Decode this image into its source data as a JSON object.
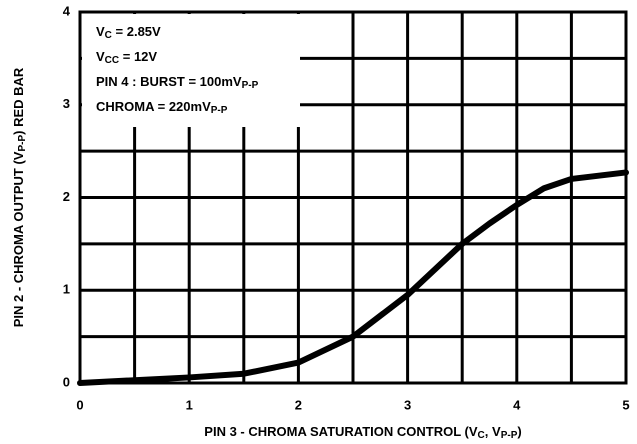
{
  "chart_data": {
    "type": "line",
    "x_label": [
      {
        "text": "PIN 3 - CHROMA SATURATION CONTROL (V"
      },
      {
        "text": "C",
        "sub": true
      },
      {
        "text": ", V"
      },
      {
        "text": "P-P",
        "sub": true
      },
      {
        "text": ")"
      }
    ],
    "y_label": [
      {
        "text": "PIN 2 - CHROMA OUTPUT (V"
      },
      {
        "text": "P-P",
        "sub": true
      },
      {
        "text": ") RED BAR"
      }
    ],
    "annotations": [
      [
        {
          "text": "V"
        },
        {
          "text": "C",
          "sub": true
        },
        {
          "text": " = 2.85V"
        }
      ],
      [
        {
          "text": "V"
        },
        {
          "text": "CC",
          "sub": true
        },
        {
          "text": " = 12V"
        }
      ],
      [
        {
          "text": "PIN 4 : BURST = 100mV"
        },
        {
          "text": "P-P",
          "sub": true
        }
      ],
      [
        {
          "text": "CHROMA = 220mV"
        },
        {
          "text": "P-P",
          "sub": true
        }
      ]
    ],
    "x": [
      0,
      0.5,
      1,
      1.5,
      2,
      2.5,
      3,
      3.5,
      3.75,
      4,
      4.25,
      4.5,
      5
    ],
    "series": [
      {
        "color": "#000000",
        "values": [
          0,
          0.03,
          0.06,
          0.1,
          0.22,
          0.5,
          0.95,
          1.5,
          1.72,
          1.92,
          2.1,
          2.2,
          2.27
        ]
      }
    ],
    "xlim": [
      0,
      5
    ],
    "ylim": [
      0,
      4
    ],
    "xticks": [
      0,
      1,
      2,
      3,
      4,
      5
    ],
    "yticks": [
      0,
      1,
      2,
      3,
      4
    ],
    "minor_xticks": [
      0.5,
      1.5,
      2.5,
      3.5,
      4.5
    ],
    "minor_yticks": [
      0.5,
      1.5,
      2.5,
      3.5
    ],
    "grid": true
  }
}
